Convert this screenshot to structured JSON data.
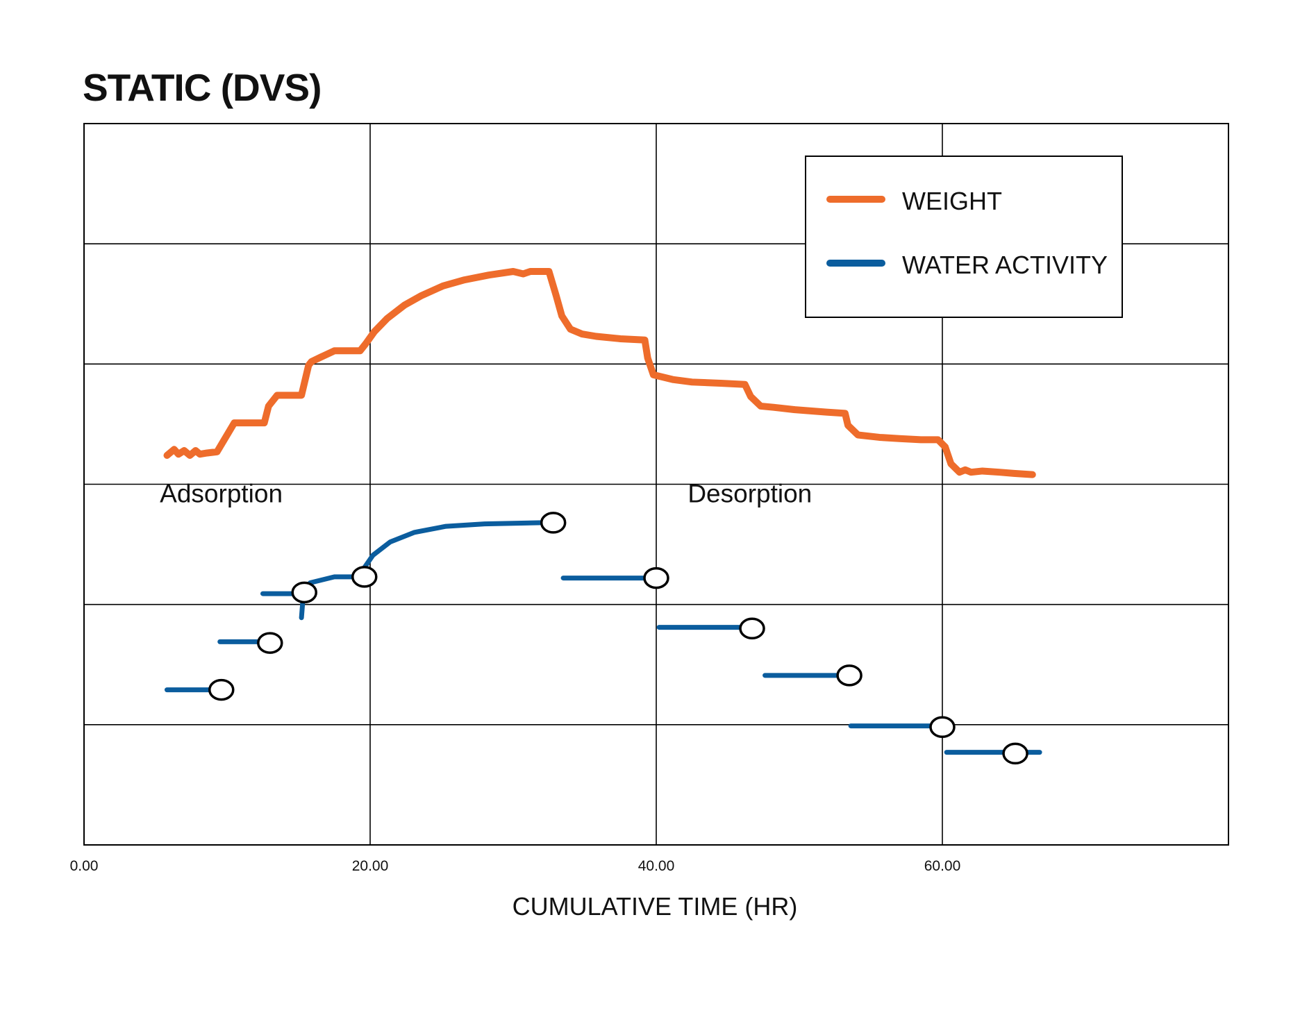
{
  "title": "STATIC (DVS)",
  "colors": {
    "weight": "#EE6C2B",
    "water_activity": "#0B5D9E",
    "grid": "#000000"
  },
  "chart_data": {
    "type": "line",
    "title": "STATIC (DVS)",
    "xlabel": "CUMULATIVE TIME (HR)",
    "ylabel": "",
    "xlim": [
      0,
      80
    ],
    "ylim": [
      0,
      6
    ],
    "x_ticks": [
      {
        "value": 0,
        "label": "0.00"
      },
      {
        "value": 20,
        "label": "20.00"
      },
      {
        "value": 40,
        "label": "40.00"
      },
      {
        "value": 60,
        "label": "60.00"
      }
    ],
    "y_gridlines": [
      1,
      2,
      3,
      4,
      5
    ],
    "grid": true,
    "legend": {
      "placement": "top-right",
      "entries": [
        {
          "label": "WEIGHT",
          "series": "weight"
        },
        {
          "label": "WATER ACTIVITY",
          "series": "water_activity"
        }
      ]
    },
    "annotations": [
      {
        "text": "Adsorption",
        "x": 5.3,
        "y": 2.85
      },
      {
        "text": "Desorption",
        "x": 42.2,
        "y": 2.85
      }
    ],
    "series": [
      {
        "name": "WEIGHT",
        "key": "weight",
        "points": [
          [
            5.8,
            3.24
          ],
          [
            6.3,
            3.29
          ],
          [
            6.6,
            3.25
          ],
          [
            7.0,
            3.28
          ],
          [
            7.4,
            3.24
          ],
          [
            7.8,
            3.28
          ],
          [
            8.1,
            3.25
          ],
          [
            8.6,
            3.26
          ],
          [
            9.3,
            3.27
          ],
          [
            10.1,
            3.43
          ],
          [
            10.5,
            3.51
          ],
          [
            12.6,
            3.51
          ],
          [
            12.9,
            3.65
          ],
          [
            13.5,
            3.74
          ],
          [
            15.2,
            3.74
          ],
          [
            15.7,
            3.99
          ],
          [
            15.9,
            4.02
          ],
          [
            16.6,
            4.06
          ],
          [
            17.5,
            4.11
          ],
          [
            19.3,
            4.11
          ],
          [
            19.7,
            4.17
          ],
          [
            20.3,
            4.27
          ],
          [
            21.2,
            4.38
          ],
          [
            22.4,
            4.49
          ],
          [
            23.6,
            4.57
          ],
          [
            25.1,
            4.65
          ],
          [
            26.6,
            4.7
          ],
          [
            28.3,
            4.74
          ],
          [
            30.0,
            4.77
          ],
          [
            30.7,
            4.75
          ],
          [
            31.2,
            4.77
          ],
          [
            32.5,
            4.77
          ],
          [
            33.0,
            4.57
          ],
          [
            33.4,
            4.4
          ],
          [
            34.0,
            4.29
          ],
          [
            34.8,
            4.25
          ],
          [
            35.8,
            4.23
          ],
          [
            37.5,
            4.21
          ],
          [
            39.2,
            4.2
          ],
          [
            39.4,
            4.05
          ],
          [
            39.8,
            3.91
          ],
          [
            41.2,
            3.87
          ],
          [
            42.5,
            3.85
          ],
          [
            44.5,
            3.84
          ],
          [
            46.2,
            3.83
          ],
          [
            46.6,
            3.73
          ],
          [
            47.3,
            3.65
          ],
          [
            48.2,
            3.64
          ],
          [
            49.7,
            3.62
          ],
          [
            51.9,
            3.6
          ],
          [
            53.2,
            3.59
          ],
          [
            53.4,
            3.49
          ],
          [
            54.1,
            3.41
          ],
          [
            55.6,
            3.39
          ],
          [
            57.0,
            3.38
          ],
          [
            58.5,
            3.37
          ],
          [
            59.7,
            3.37
          ],
          [
            60.2,
            3.31
          ],
          [
            60.6,
            3.17
          ],
          [
            61.2,
            3.1
          ],
          [
            61.6,
            3.12
          ],
          [
            62.0,
            3.1
          ],
          [
            62.8,
            3.11
          ],
          [
            64.0,
            3.1
          ],
          [
            65.0,
            3.09
          ],
          [
            66.3,
            3.08
          ]
        ]
      },
      {
        "name": "WATER ACTIVITY",
        "key": "water_activity",
        "segments": [
          [
            [
              5.8,
              1.29
            ],
            [
              9.4,
              1.29
            ]
          ],
          [
            [
              9.5,
              1.69
            ],
            [
              12.9,
              1.69
            ]
          ],
          [
            [
              12.5,
              2.09
            ],
            [
              15.2,
              2.09
            ]
          ],
          [
            [
              15.2,
              1.89
            ],
            [
              15.3,
              2.04
            ],
            [
              15.8,
              2.18
            ],
            [
              17.5,
              2.23
            ],
            [
              19.3,
              2.23
            ]
          ],
          [
            [
              19.5,
              2.29
            ],
            [
              20.2,
              2.41
            ],
            [
              21.4,
              2.52
            ],
            [
              23.1,
              2.6
            ],
            [
              25.3,
              2.65
            ],
            [
              28.0,
              2.67
            ],
            [
              32.0,
              2.68
            ],
            [
              32.6,
              2.68
            ]
          ],
          [
            [
              33.5,
              2.22
            ],
            [
              39.8,
              2.22
            ]
          ],
          [
            [
              40.2,
              1.81
            ],
            [
              46.8,
              1.81
            ]
          ],
          [
            [
              47.6,
              1.41
            ],
            [
              53.3,
              1.41
            ]
          ],
          [
            [
              53.6,
              0.99
            ],
            [
              59.8,
              0.99
            ]
          ],
          [
            [
              60.3,
              0.77
            ],
            [
              66.8,
              0.77
            ]
          ]
        ],
        "markers": [
          [
            9.6,
            1.29
          ],
          [
            13.0,
            1.68
          ],
          [
            15.4,
            2.1
          ],
          [
            19.6,
            2.23
          ],
          [
            32.8,
            2.68
          ],
          [
            40.0,
            2.22
          ],
          [
            46.7,
            1.8
          ],
          [
            53.5,
            1.41
          ],
          [
            60.0,
            0.98
          ],
          [
            65.1,
            0.76
          ]
        ]
      }
    ]
  }
}
